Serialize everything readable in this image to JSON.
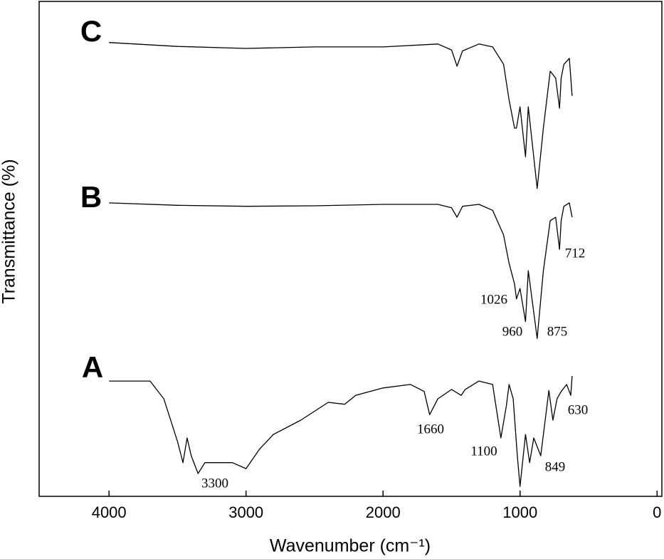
{
  "chart_data": {
    "type": "line",
    "xlabel": "Wavenumber (cm⁻¹)",
    "ylabel": "Transmittance (%)",
    "xlim": [
      4510,
      -35
    ],
    "ylim": [
      0,
      100
    ],
    "xticks": [
      4000,
      3000,
      2000,
      1000,
      0
    ],
    "series": [
      {
        "name": "C",
        "color": "#000000",
        "x": [
          4000,
          3500,
          3000,
          2500,
          2000,
          1600,
          1500,
          1460,
          1420,
          1300,
          1200,
          1120,
          1080,
          1040,
          1026,
          1000,
          960,
          940,
          875,
          830,
          780,
          740,
          712,
          700,
          680,
          640,
          620
        ],
        "values": [
          91.7,
          90.9,
          90.5,
          90.8,
          90.8,
          91.4,
          90.2,
          86.9,
          90.0,
          91.4,
          90.8,
          87.3,
          80.1,
          74.4,
          74.4,
          78.7,
          68.6,
          78.7,
          62.2,
          74.4,
          85.9,
          84.5,
          78.4,
          84.5,
          87.3,
          88.5,
          80.9
        ]
      },
      {
        "name": "B",
        "color": "#000000",
        "x": [
          4000,
          3500,
          3000,
          2500,
          2000,
          1600,
          1500,
          1460,
          1420,
          1300,
          1200,
          1120,
          1080,
          1040,
          1026,
          1000,
          960,
          940,
          875,
          830,
          780,
          740,
          712,
          700,
          680,
          640,
          620
        ],
        "values": [
          59.3,
          58.8,
          58.6,
          58.7,
          59.0,
          59.0,
          58.3,
          56.4,
          58.6,
          59.0,
          57.8,
          52.8,
          47.1,
          42.9,
          39.9,
          42.0,
          35.3,
          45.6,
          31.9,
          45.6,
          55.7,
          56.4,
          49.9,
          55.7,
          58.6,
          59.3,
          56.4
        ]
      },
      {
        "name": "A",
        "color": "#000000",
        "x": [
          4000,
          3700,
          3600,
          3500,
          3460,
          3430,
          3400,
          3350,
          3300,
          3200,
          3100,
          3000,
          2900,
          2800,
          2600,
          2400,
          2280,
          2200,
          2000,
          1800,
          1700,
          1660,
          1600,
          1500,
          1430,
          1400,
          1300,
          1200,
          1160,
          1140,
          1100,
          1080,
          1050,
          1020,
          1000,
          960,
          930,
          900,
          849,
          810,
          790,
          760,
          730,
          700,
          660,
          630,
          620
        ],
        "values": [
          23.3,
          23.3,
          19.7,
          11.1,
          6.8,
          11.8,
          8.2,
          4.6,
          6.8,
          6.8,
          6.8,
          5.6,
          9.6,
          12.5,
          15.4,
          19.0,
          18.6,
          20.4,
          21.9,
          22.6,
          21.2,
          16.5,
          19.7,
          21.6,
          20.4,
          21.6,
          23.3,
          22.6,
          15.4,
          11.8,
          18.3,
          22.6,
          19.7,
          8.2,
          2.0,
          12.5,
          6.8,
          11.8,
          8.2,
          16.8,
          21.4,
          15.4,
          19.7,
          21.2,
          22.6,
          20.4,
          24.3
        ]
      }
    ],
    "annotations": [
      "712",
      "1026",
      "960",
      "875",
      "1660",
      "1100",
      "849",
      "630",
      "3300"
    ]
  }
}
